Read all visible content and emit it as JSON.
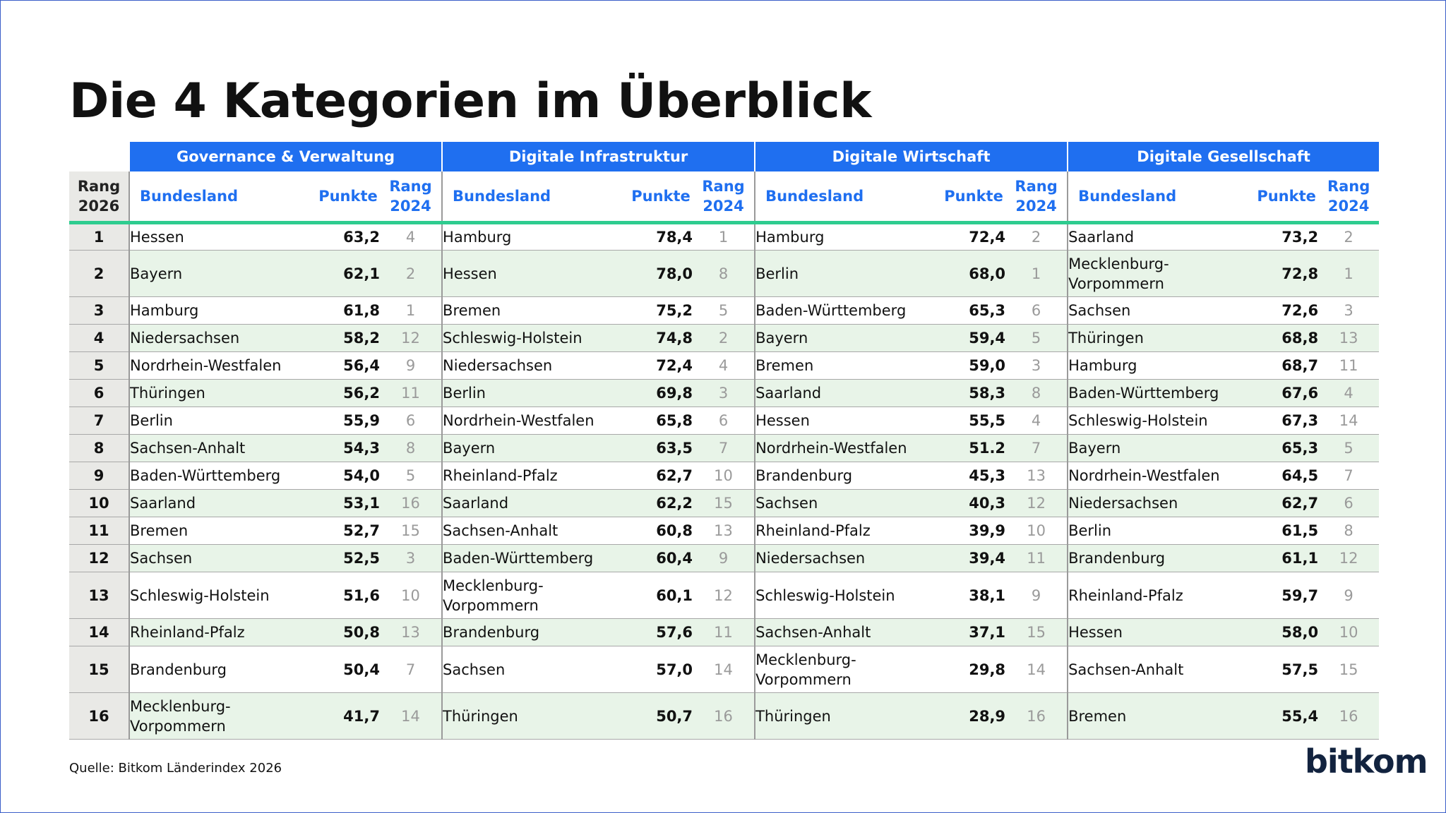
{
  "title": "Die 4 Kategorien im Überblick",
  "source": "Quelle: Bitkom Länderindex 2026",
  "logo": "bitkom",
  "colors": {
    "header_blue": "#1f6ff0",
    "accent_green": "#2ecc8f",
    "row_alt": "#e8f4e8",
    "rank_bg": "#e9e9e6"
  },
  "table": {
    "rank_header": [
      "Rang",
      "2026"
    ],
    "sub_headers": {
      "bundesland": "Bundesland",
      "punkte": "Punkte",
      "rang_line1": "Rang",
      "rang_line2": "2024"
    },
    "categories": [
      {
        "name": "Governance & Verwaltung",
        "rows": [
          {
            "bundesland": "Hessen",
            "punkte": "63,2",
            "rang_2024": "4"
          },
          {
            "bundesland": "Bayern",
            "punkte": "62,1",
            "rang_2024": "2"
          },
          {
            "bundesland": "Hamburg",
            "punkte": "61,8",
            "rang_2024": "1"
          },
          {
            "bundesland": "Niedersachsen",
            "punkte": "58,2",
            "rang_2024": "12"
          },
          {
            "bundesland": "Nordrhein-Westfalen",
            "punkte": "56,4",
            "rang_2024": "9"
          },
          {
            "bundesland": "Thüringen",
            "punkte": "56,2",
            "rang_2024": "11"
          },
          {
            "bundesland": "Berlin",
            "punkte": "55,9",
            "rang_2024": "6"
          },
          {
            "bundesland": "Sachsen-Anhalt",
            "punkte": "54,3",
            "rang_2024": "8"
          },
          {
            "bundesland": "Baden-Württemberg",
            "punkte": "54,0",
            "rang_2024": "5"
          },
          {
            "bundesland": "Saarland",
            "punkte": "53,1",
            "rang_2024": "16"
          },
          {
            "bundesland": "Bremen",
            "punkte": "52,7",
            "rang_2024": "15"
          },
          {
            "bundesland": "Sachsen",
            "punkte": "52,5",
            "rang_2024": "3"
          },
          {
            "bundesland": "Schleswig-Holstein",
            "punkte": "51,6",
            "rang_2024": "10"
          },
          {
            "bundesland": "Rheinland-Pfalz",
            "punkte": "50,8",
            "rang_2024": "13"
          },
          {
            "bundesland": "Brandenburg",
            "punkte": "50,4",
            "rang_2024": "7"
          },
          {
            "bundesland": "Mecklenburg-\nVorpommern",
            "punkte": "41,7",
            "rang_2024": "14"
          }
        ]
      },
      {
        "name": "Digitale Infrastruktur",
        "rows": [
          {
            "bundesland": "Hamburg",
            "punkte": "78,4",
            "rang_2024": "1"
          },
          {
            "bundesland": "Hessen",
            "punkte": "78,0",
            "rang_2024": "8"
          },
          {
            "bundesland": "Bremen",
            "punkte": "75,2",
            "rang_2024": "5"
          },
          {
            "bundesland": "Schleswig-Holstein",
            "punkte": "74,8",
            "rang_2024": "2"
          },
          {
            "bundesland": "Niedersachsen",
            "punkte": "72,4",
            "rang_2024": "4"
          },
          {
            "bundesland": "Berlin",
            "punkte": "69,8",
            "rang_2024": "3"
          },
          {
            "bundesland": "Nordrhein-Westfalen",
            "punkte": "65,8",
            "rang_2024": "6"
          },
          {
            "bundesland": "Bayern",
            "punkte": "63,5",
            "rang_2024": "7"
          },
          {
            "bundesland": "Rheinland-Pfalz",
            "punkte": "62,7",
            "rang_2024": "10"
          },
          {
            "bundesland": "Saarland",
            "punkte": "62,2",
            "rang_2024": "15"
          },
          {
            "bundesland": "Sachsen-Anhalt",
            "punkte": "60,8",
            "rang_2024": "13"
          },
          {
            "bundesland": "Baden-Württemberg",
            "punkte": "60,4",
            "rang_2024": "9"
          },
          {
            "bundesland": "Mecklenburg-\nVorpommern",
            "punkte": "60,1",
            "rang_2024": "12"
          },
          {
            "bundesland": "Brandenburg",
            "punkte": "57,6",
            "rang_2024": "11"
          },
          {
            "bundesland": "Sachsen",
            "punkte": "57,0",
            "rang_2024": "14"
          },
          {
            "bundesland": "Thüringen",
            "punkte": "50,7",
            "rang_2024": "16"
          }
        ]
      },
      {
        "name": "Digitale Wirtschaft",
        "rows": [
          {
            "bundesland": "Hamburg",
            "punkte": "72,4",
            "rang_2024": "2"
          },
          {
            "bundesland": "Berlin",
            "punkte": "68,0",
            "rang_2024": "1"
          },
          {
            "bundesland": "Baden-Württemberg",
            "punkte": "65,3",
            "rang_2024": "6"
          },
          {
            "bundesland": "Bayern",
            "punkte": "59,4",
            "rang_2024": "5"
          },
          {
            "bundesland": "Bremen",
            "punkte": "59,0",
            "rang_2024": "3"
          },
          {
            "bundesland": "Saarland",
            "punkte": "58,3",
            "rang_2024": "8"
          },
          {
            "bundesland": "Hessen",
            "punkte": "55,5",
            "rang_2024": "4"
          },
          {
            "bundesland": "Nordrhein-Westfalen",
            "punkte": "51.2",
            "rang_2024": "7"
          },
          {
            "bundesland": "Brandenburg",
            "punkte": "45,3",
            "rang_2024": "13"
          },
          {
            "bundesland": "Sachsen",
            "punkte": "40,3",
            "rang_2024": "12"
          },
          {
            "bundesland": "Rheinland-Pfalz",
            "punkte": "39,9",
            "rang_2024": "10"
          },
          {
            "bundesland": "Niedersachsen",
            "punkte": "39,4",
            "rang_2024": "11"
          },
          {
            "bundesland": "Schleswig-Holstein",
            "punkte": "38,1",
            "rang_2024": "9"
          },
          {
            "bundesland": "Sachsen-Anhalt",
            "punkte": "37,1",
            "rang_2024": "15"
          },
          {
            "bundesland": "Mecklenburg-\nVorpommern",
            "punkte": "29,8",
            "rang_2024": "14"
          },
          {
            "bundesland": "Thüringen",
            "punkte": "28,9",
            "rang_2024": "16"
          }
        ]
      },
      {
        "name": "Digitale Gesellschaft",
        "rows": [
          {
            "bundesland": "Saarland",
            "punkte": "73,2",
            "rang_2024": "2"
          },
          {
            "bundesland": "Mecklenburg-\nVorpommern",
            "punkte": "72,8",
            "rang_2024": "1"
          },
          {
            "bundesland": "Sachsen",
            "punkte": "72,6",
            "rang_2024": "3"
          },
          {
            "bundesland": "Thüringen",
            "punkte": "68,8",
            "rang_2024": "13"
          },
          {
            "bundesland": "Hamburg",
            "punkte": "68,7",
            "rang_2024": "11"
          },
          {
            "bundesland": "Baden-Württemberg",
            "punkte": "67,6",
            "rang_2024": "4"
          },
          {
            "bundesland": "Schleswig-Holstein",
            "punkte": "67,3",
            "rang_2024": "14"
          },
          {
            "bundesland": "Bayern",
            "punkte": "65,3",
            "rang_2024": "5"
          },
          {
            "bundesland": "Nordrhein-Westfalen",
            "punkte": "64,5",
            "rang_2024": "7"
          },
          {
            "bundesland": "Niedersachsen",
            "punkte": "62,7",
            "rang_2024": "6"
          },
          {
            "bundesland": "Berlin",
            "punkte": "61,5",
            "rang_2024": "8"
          },
          {
            "bundesland": "Brandenburg",
            "punkte": "61,1",
            "rang_2024": "12"
          },
          {
            "bundesland": "Rheinland-Pfalz",
            "punkte": "59,7",
            "rang_2024": "9"
          },
          {
            "bundesland": "Hessen",
            "punkte": "58,0",
            "rang_2024": "10"
          },
          {
            "bundesland": "Sachsen-Anhalt",
            "punkte": "57,5",
            "rang_2024": "15"
          },
          {
            "bundesland": "Bremen",
            "punkte": "55,4",
            "rang_2024": "16"
          }
        ]
      }
    ],
    "ranks": [
      "1",
      "2",
      "3",
      "4",
      "5",
      "6",
      "7",
      "8",
      "9",
      "10",
      "11",
      "12",
      "13",
      "14",
      "15",
      "16"
    ]
  }
}
